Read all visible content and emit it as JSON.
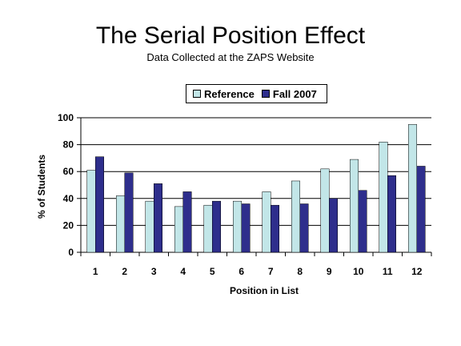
{
  "chart_data": {
    "type": "bar",
    "title": "The Serial Position Effect",
    "subtitle": "Data Collected at the ZAPS Website",
    "xlabel": "Position in List",
    "ylabel": "% of Students",
    "ylim": [
      0,
      100
    ],
    "yticks": [
      "0",
      "20",
      "40",
      "60",
      "80",
      "100"
    ],
    "grid": true,
    "legend_position": "top-center",
    "categories": [
      "1",
      "2",
      "3",
      "4",
      "5",
      "6",
      "7",
      "8",
      "9",
      "10",
      "11",
      "12"
    ],
    "series": [
      {
        "name": "Reference",
        "color": "#c2e6e8",
        "values": [
          61,
          42,
          38,
          34,
          35,
          38,
          45,
          53,
          62,
          69,
          82,
          95
        ]
      },
      {
        "name": "Fall 2007",
        "color": "#2e2e8c",
        "values": [
          71,
          59,
          51,
          45,
          38,
          36,
          35,
          36,
          40,
          46,
          57,
          64
        ]
      }
    ]
  }
}
